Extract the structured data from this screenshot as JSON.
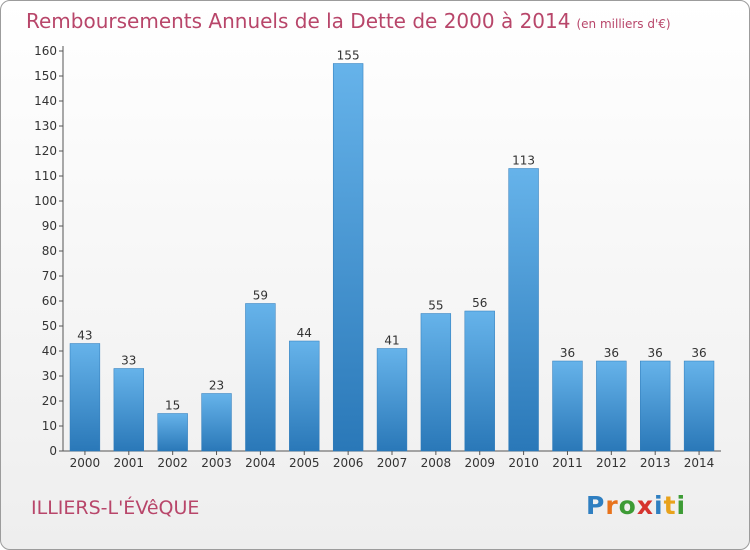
{
  "title": "Remboursements Annuels de la Dette de 2000 à 2014",
  "unit": "(en milliers d'€)",
  "commune": "ILLIERS-L'ÉVêQUE",
  "logo": {
    "letters": [
      "P",
      "r",
      "o",
      "x",
      "i",
      "t",
      "i"
    ],
    "colors": [
      "#2f7fc1",
      "#e8731c",
      "#3d9b35",
      "#d6342f",
      "#2f7fc1",
      "#e8a21c",
      "#3d9b35"
    ]
  },
  "colors": {
    "bar": "#4f9fdd",
    "bar_light": "#66b3ea",
    "bar_dark": "#2a78b8",
    "title": "#b8466a"
  },
  "chart_data": {
    "type": "bar",
    "title": "Remboursements Annuels de la Dette de 2000 à 2014",
    "categories": [
      "2000",
      "2001",
      "2002",
      "2003",
      "2004",
      "2005",
      "2006",
      "2007",
      "2008",
      "2009",
      "2010",
      "2011",
      "2012",
      "2013",
      "2014"
    ],
    "values": [
      43,
      33,
      15,
      23,
      59,
      44,
      155,
      41,
      55,
      56,
      113,
      36,
      36,
      36,
      36
    ],
    "ylim": [
      0,
      160
    ],
    "yticks": [
      0,
      10,
      20,
      30,
      40,
      50,
      60,
      70,
      80,
      90,
      100,
      110,
      120,
      130,
      140,
      150,
      160
    ],
    "grid": false,
    "xlabel": "",
    "ylabel": ""
  }
}
